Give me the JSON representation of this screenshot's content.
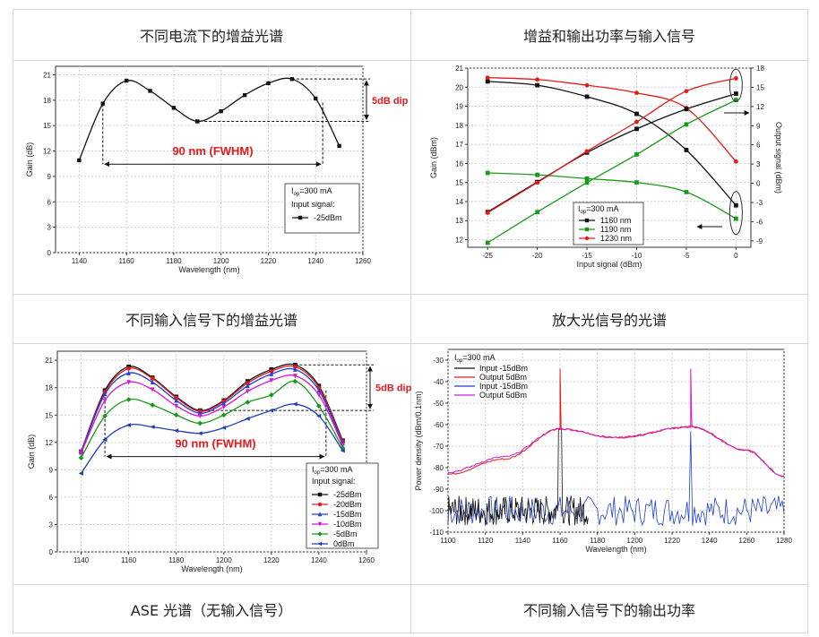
{
  "headers": {
    "tl": "不同电流下的增益光谱",
    "tr": "增益和输出功率与输入信号",
    "ml": "不同输入信号下的增益光谱",
    "mr": "放大光信号的光谱",
    "bl": "ASE 光谱（无输入信号）",
    "br": "不同输入信号下的输出功率"
  },
  "chart_data": [
    {
      "type": "line",
      "xlabel": "Wavelength (nm)",
      "ylabel": "Gain (dB)",
      "xlim": [
        1130,
        1260
      ],
      "ylim": [
        0,
        22
      ],
      "xticks": [
        1140,
        1160,
        1180,
        1200,
        1220,
        1240,
        1260
      ],
      "yticks": [
        0,
        3,
        6,
        9,
        12,
        15,
        18,
        21
      ],
      "grid": true,
      "annotations": {
        "dip": "5dB dip",
        "fwhm": "90 nm (FWHM)"
      },
      "legend": {
        "current": "I",
        "current_sub": "op",
        "current_val": "=300 mA",
        "line2": "Input signal:",
        "placement": "bottom-right"
      },
      "series": [
        {
          "name": "-25dBm",
          "color": "#111111",
          "x": [
            1140,
            1150,
            1160,
            1170,
            1180,
            1190,
            1200,
            1210,
            1220,
            1230,
            1240,
            1250
          ],
          "values": [
            10.9,
            17.6,
            20.3,
            19.1,
            17.1,
            15.5,
            16.7,
            18.6,
            20.0,
            20.5,
            18.2,
            12.6
          ]
        }
      ]
    },
    {
      "type": "line",
      "xlabel": "Input signal (dBm)",
      "ylabel": "Gain (dBm)",
      "y2label": "Output signal (dBm)",
      "xlim": [
        -27,
        1.5
      ],
      "ylim": [
        11.6,
        21
      ],
      "y2lim": [
        -10,
        18
      ],
      "xticks": [
        -25,
        -20,
        -15,
        -10,
        -5,
        0
      ],
      "yticks": [
        12,
        13,
        14,
        15,
        16,
        17,
        18,
        19,
        20,
        21
      ],
      "y2ticks": [
        -9,
        -6,
        -3,
        0,
        3,
        6,
        9,
        12,
        15,
        18
      ],
      "grid": true,
      "legend": {
        "current": "I",
        "current_sub": "op",
        "current_val": "=300 mA",
        "placement": "bottom-center"
      },
      "x": [
        -25,
        -20,
        -15,
        -10,
        -5,
        0
      ],
      "series": [
        {
          "name": "1160 nm",
          "color": "#111111",
          "axis": "gain",
          "values": [
            20.3,
            20.1,
            19.5,
            18.6,
            16.7,
            13.8
          ]
        },
        {
          "name": "1190 nm",
          "color": "#1a9a1a",
          "axis": "gain",
          "values": [
            15.5,
            15.4,
            15.2,
            15.0,
            14.5,
            13.1
          ]
        },
        {
          "name": "1230 nm",
          "color": "#e41a1c",
          "axis": "gain",
          "values": [
            20.5,
            20.4,
            20.1,
            19.7,
            18.9,
            16.1
          ]
        },
        {
          "name": "",
          "color": "#111111",
          "axis": "output",
          "values": [
            -4.5,
            0.2,
            4.8,
            8.5,
            11.6,
            14.0
          ]
        },
        {
          "name": "",
          "color": "#1a9a1a",
          "axis": "output",
          "values": [
            -9.3,
            -4.5,
            0.1,
            4.5,
            9.2,
            13.0
          ]
        },
        {
          "name": "",
          "color": "#e41a1c",
          "axis": "output",
          "values": [
            -4.6,
            0.1,
            5.0,
            9.6,
            14.4,
            16.4
          ]
        }
      ]
    },
    {
      "type": "line",
      "xlabel": "Wavelength (nm)",
      "ylabel": "Gain (dB)",
      "xlim": [
        1130,
        1260
      ],
      "ylim": [
        0,
        22
      ],
      "xticks": [
        1140,
        1160,
        1180,
        1200,
        1220,
        1240,
        1260
      ],
      "yticks": [
        0,
        3,
        6,
        9,
        12,
        15,
        18,
        21
      ],
      "grid": true,
      "annotations": {
        "dip": "5dB dip",
        "fwhm": "90 nm (FWHM)"
      },
      "legend": {
        "current": "I",
        "current_sub": "op",
        "current_val": "=300 mA",
        "line2": "Input signal:",
        "placement": "bottom-right"
      },
      "x": [
        1140,
        1150,
        1160,
        1170,
        1180,
        1190,
        1200,
        1210,
        1220,
        1230,
        1240,
        1250
      ],
      "series": [
        {
          "name": "-25dBm",
          "color": "#111111",
          "marker": "square",
          "values": [
            11.0,
            17.7,
            20.3,
            19.1,
            17.0,
            15.5,
            16.6,
            18.7,
            20.0,
            20.5,
            18.2,
            12.2
          ]
        },
        {
          "name": "-20dBm",
          "color": "#e41a1c",
          "marker": "circle",
          "values": [
            11.0,
            17.5,
            20.1,
            19.0,
            16.9,
            15.4,
            16.5,
            18.5,
            19.8,
            20.3,
            18.0,
            12.1
          ]
        },
        {
          "name": "-15dBm",
          "color": "#1f3fd8",
          "marker": "triangle",
          "values": [
            10.9,
            17.3,
            19.6,
            18.6,
            16.6,
            15.2,
            16.3,
            18.2,
            19.5,
            20.0,
            17.7,
            11.9
          ]
        },
        {
          "name": "-10dBm",
          "color": "#d21bd2",
          "marker": "tri-down",
          "values": [
            10.8,
            16.6,
            18.6,
            17.8,
            16.0,
            14.9,
            15.9,
            17.6,
            18.8,
            19.3,
            17.2,
            11.7
          ]
        },
        {
          "name": "-5dBm",
          "color": "#1a9a1a",
          "marker": "diamond",
          "values": [
            10.3,
            14.9,
            16.7,
            16.1,
            15.0,
            14.1,
            15.0,
            16.4,
            17.2,
            18.7,
            16.0,
            11.4
          ]
        },
        {
          "name": "0dBm",
          "color": "#1f3fb0",
          "marker": "tri-left",
          "values": [
            8.6,
            12.3,
            13.9,
            13.7,
            13.3,
            13.0,
            13.6,
            14.6,
            15.5,
            16.2,
            14.9,
            11.1
          ]
        }
      ]
    },
    {
      "type": "line",
      "xlabel": "Wavelength (nm)",
      "ylabel": "Power density (dBm/0.1nm)",
      "xlim": [
        1100,
        1280
      ],
      "ylim": [
        -110,
        -25
      ],
      "xticks": [
        1100,
        1120,
        1140,
        1160,
        1180,
        1200,
        1220,
        1240,
        1260,
        1280
      ],
      "yticks": [
        -110,
        -100,
        -90,
        -80,
        -70,
        -60,
        -50,
        -40,
        -30
      ],
      "grid": true,
      "legend": {
        "current": "I",
        "current_sub": "op",
        "current_val": "=300 mA",
        "placement": "top-left"
      },
      "series": [
        {
          "name": "Input -15dBm",
          "color": "#111111",
          "peak_x": 1160,
          "peak_y": -62,
          "floor": -100
        },
        {
          "name": "Output 5dBm",
          "color": "#e41a1c",
          "peak_x": 1160,
          "peak_y": -34,
          "env": [
            [
              1100,
              -83
            ],
            [
              1130,
              -76
            ],
            [
              1160,
              -62
            ],
            [
              1190,
              -66
            ],
            [
              1230,
              -61
            ],
            [
              1260,
              -72
            ],
            [
              1280,
              -84
            ]
          ]
        },
        {
          "name": "Input -15dBm",
          "color": "#1f3fd8",
          "peak_x": 1230,
          "peak_y": -63,
          "floor": -100
        },
        {
          "name": "Output 5dBm",
          "color": "#d21bd2",
          "peak_x": 1230,
          "peak_y": -34,
          "env": [
            [
              1100,
              -82
            ],
            [
              1130,
              -75
            ],
            [
              1160,
              -62
            ],
            [
              1190,
              -66
            ],
            [
              1230,
              -61
            ],
            [
              1260,
              -72
            ],
            [
              1280,
              -84
            ]
          ]
        }
      ]
    }
  ]
}
